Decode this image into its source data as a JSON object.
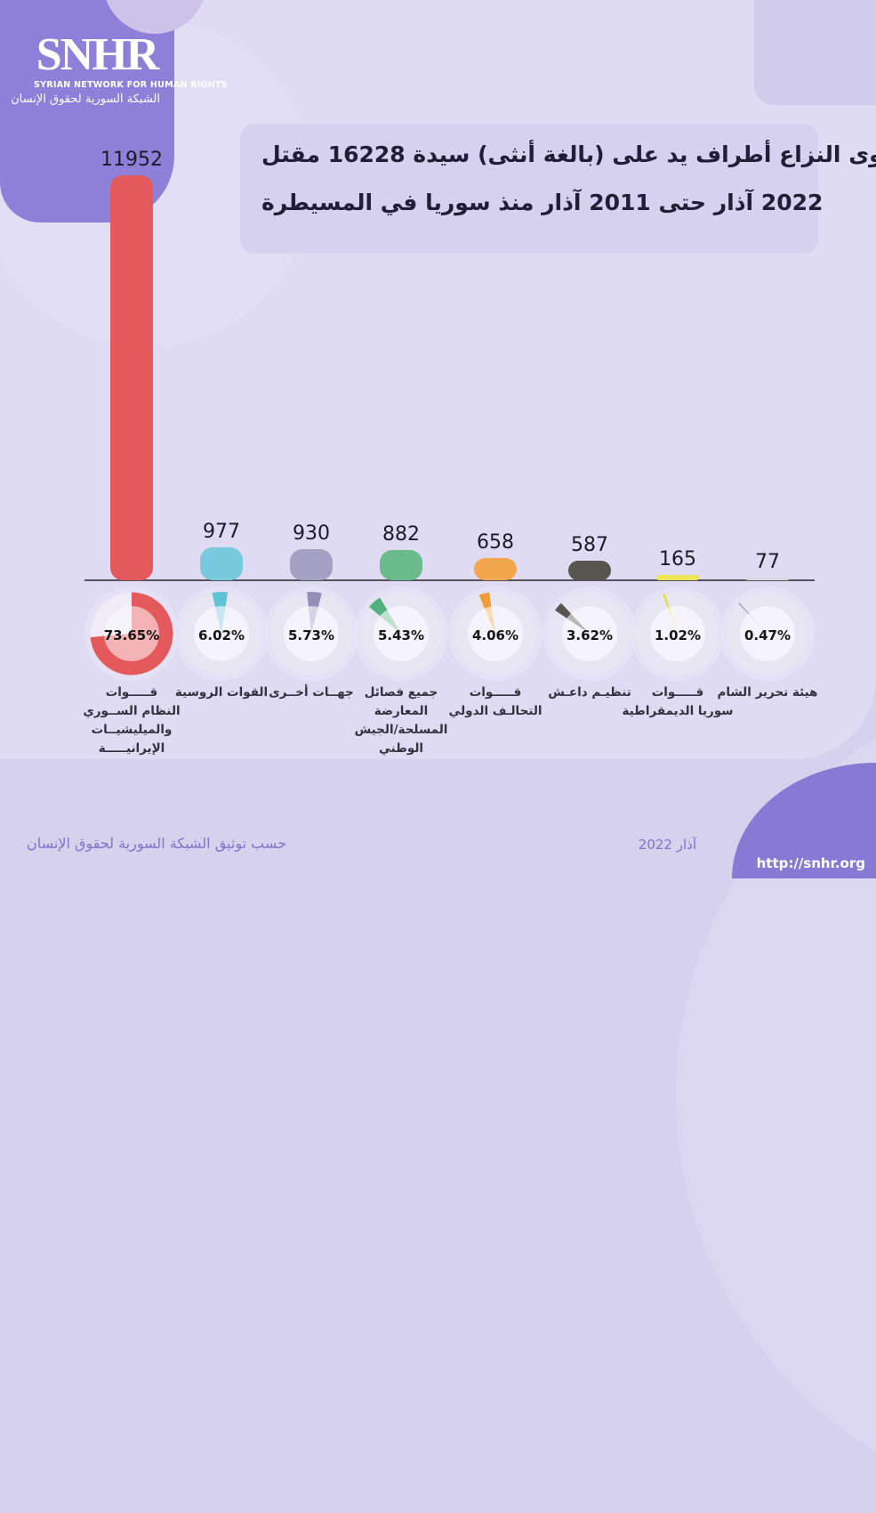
{
  "logo": {
    "acronym": "SNHR",
    "name_en": "SYRIAN NETWORK FOR HUMAN RIGHTS",
    "name_ar": "الشبكة السورية لحقوق الإنسان"
  },
  "title": {
    "line1": "مقتل 16228 سيدة (أنثى بالغة) على يد أطراف النزاع والقوى",
    "line2": "المسيطرة في سوريا منذ آذار 2011 حتى آذار 2022"
  },
  "footer": {
    "source": "حسب توثيق الشبكة السورية لحقوق الإنسان",
    "date": "آذار 2022",
    "url": "http://snhr.org"
  },
  "chart_data": {
    "type": "bar",
    "title": "مقتل 16228 سيدة (أنثى بالغة) على يد أطراف النزاع والقوى المسيطرة في سوريا منذ آذار 2011 حتى آذار 2022",
    "total": 16228,
    "period": "آذار 2011 - آذار 2022",
    "ylim": [
      0,
      11952
    ],
    "grid": false,
    "legend_position": "none",
    "categories": [
      "قوات النظام السوري والميليشيات الإيرانية",
      "القوات الروسية",
      "جهات أخرى",
      "جميع فصائل المعارضة المسلحة/الجيش الوطني",
      "قوات التحالف الدولي",
      "تنظيم داعش",
      "قوات سوريا الديمقراطية",
      "هيئة تحرير الشام"
    ],
    "values": [
      11952,
      977,
      930,
      882,
      658,
      587,
      165,
      77
    ],
    "percents": [
      73.65,
      6.02,
      5.73,
      5.43,
      4.06,
      3.62,
      1.02,
      0.47
    ],
    "series": [
      {
        "name": "قوات النظام السوري والميليشيات الإيرانية",
        "label_lines": [
          "قـــــوات",
          "النظام الســوري",
          "والميليشيــات",
          "الإيرانيـــــة"
        ],
        "value": 11952,
        "percent_label": "73.65%",
        "color": "#E4595C",
        "color_light": "#F3B2B4",
        "wedge_start_deg": 0,
        "donut_style": "ring"
      },
      {
        "name": "القوات الروسية",
        "label_lines": [
          "القوات الروسية"
        ],
        "value": 977,
        "percent_label": "6.02%",
        "color": "#79C9DC",
        "wedge_color": "#5FC2D8",
        "color_light": "#BEE5EE",
        "wedge_start_deg": -13,
        "donut_style": "wedge"
      },
      {
        "name": "جهات أخرى",
        "label_lines": [
          "جهــات أخــرى"
        ],
        "value": 930,
        "percent_label": "5.73%",
        "color": "#A5A1C4",
        "wedge_color": "#938FB6",
        "color_light": "#D0CDE1",
        "wedge_start_deg": -6,
        "donut_style": "wedge"
      },
      {
        "name": "جميع فصائل المعارضة المسلحة/الجيش الوطني",
        "label_lines": [
          "جميع فصائل",
          "المعارضة",
          "المسلحة/الجيش",
          "الوطني"
        ],
        "value": 882,
        "percent_label": "5.43%",
        "color": "#6CBB8C",
        "wedge_color": "#53AF7D",
        "color_light": "#B4DDC6",
        "wedge_start_deg": -50,
        "donut_style": "wedge"
      },
      {
        "name": "قوات التحالف الدولي",
        "label_lines": [
          "قـــــوات",
          "التحالـف الدولي"
        ],
        "value": 658,
        "percent_label": "4.06%",
        "color": "#F2A64E",
        "wedge_color": "#F09C39",
        "color_light": "#F8D5A6",
        "wedge_start_deg": -23,
        "donut_style": "wedge"
      },
      {
        "name": "تنظيم داعش",
        "label_lines": [
          "تنظيـم داعـش"
        ],
        "value": 587,
        "percent_label": "3.62%",
        "color": "#57554E",
        "wedge_color": "#57554E",
        "color_light": "#AEACA6",
        "wedge_start_deg": -56,
        "donut_style": "wedge"
      },
      {
        "name": "قوات سوريا الديمقراطية",
        "label_lines": [
          "قـــــوات",
          "سوريا الديمقراطية"
        ],
        "value": 165,
        "percent_label": "1.02%",
        "color": "#ECE556",
        "wedge_color": "#E8DF3E",
        "color_light": "#F6F1A8",
        "wedge_start_deg": -21,
        "donut_style": "wedge"
      },
      {
        "name": "هيئة تحرير الشام",
        "label_lines": [
          "هيئة تحرير الشام"
        ],
        "value": 77,
        "percent_label": "0.47%",
        "color": "#D8D8DE",
        "wedge_color": "#9FA0A8",
        "color_light": "#D6D6DC",
        "wedge_start_deg": -44,
        "donut_style": "wedge"
      }
    ]
  }
}
